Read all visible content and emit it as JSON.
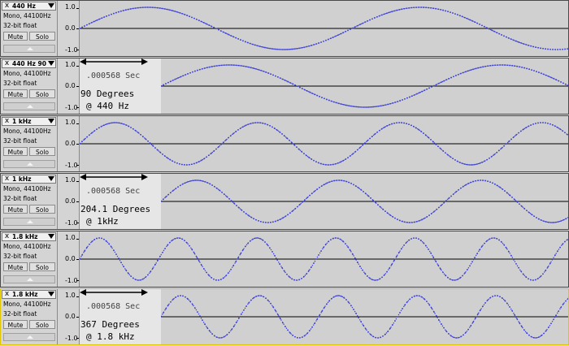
{
  "colors": {
    "waveform": "#3b3fd6",
    "zero_line": "#000000",
    "selected_border": "#e0c600"
  },
  "tracks": [
    {
      "name": "440 Hz",
      "format": "Mono, 44100Hz",
      "depth": "32-bit float",
      "mute": "Mute",
      "solo": "Solo",
      "close": "x",
      "scale": {
        "max": "1.0",
        "mid": "0.0",
        "min": "-1.0"
      },
      "frequency_hz": 440,
      "phase_degrees": 0,
      "delayed": false,
      "annotation": null
    },
    {
      "name": "440 Hz 90",
      "format": "Mono, 44100Hz",
      "depth": "32-bit float",
      "mute": "Mute",
      "solo": "Solo",
      "close": "x",
      "scale": {
        "max": "1.0",
        "mid": "0.0",
        "min": "-1.0"
      },
      "frequency_hz": 440,
      "phase_degrees": 90,
      "delayed": true,
      "annotation": {
        "time": ".000568 Sec",
        "degrees": "90 Degrees",
        "freq": "@ 440 Hz"
      }
    },
    {
      "name": "1 kHz",
      "format": "Mono, 44100Hz",
      "depth": "32-bit float",
      "mute": "Mute",
      "solo": "Solo",
      "close": "x",
      "scale": {
        "max": "1.0",
        "mid": "0.0",
        "min": "-1.0"
      },
      "frequency_hz": 1000,
      "phase_degrees": 0,
      "delayed": false,
      "annotation": null
    },
    {
      "name": "1 kHz",
      "format": "Mono, 44100Hz",
      "depth": "32-bit float",
      "mute": "Mute",
      "solo": "Solo",
      "close": "x",
      "scale": {
        "max": "1.0",
        "mid": "0.0",
        "min": "-1.0"
      },
      "frequency_hz": 1000,
      "phase_degrees": 204.1,
      "delayed": true,
      "annotation": {
        "time": ".000568 Sec",
        "degrees": "204.1 Degrees",
        "freq": "@ 1kHz"
      }
    },
    {
      "name": "1.8 kHz",
      "format": "Mono, 44100Hz",
      "depth": "32-bit float",
      "mute": "Mute",
      "solo": "Solo",
      "close": "x",
      "scale": {
        "max": "1.0",
        "mid": "0.0",
        "min": "-1.0"
      },
      "frequency_hz": 1800,
      "phase_degrees": 0,
      "delayed": false,
      "annotation": null
    },
    {
      "name": "1.8 kHz",
      "format": "Mono, 44100Hz",
      "depth": "32-bit float",
      "mute": "Mute",
      "solo": "Solo",
      "close": "x",
      "scale": {
        "max": "1.0",
        "mid": "0.0",
        "min": "-1.0"
      },
      "frequency_hz": 1800,
      "phase_degrees": 367,
      "delayed": true,
      "selected": true,
      "annotation": {
        "time": ".000568 Sec",
        "degrees": "367 Degrees",
        "freq": "@ 1.8 kHz"
      }
    }
  ]
}
